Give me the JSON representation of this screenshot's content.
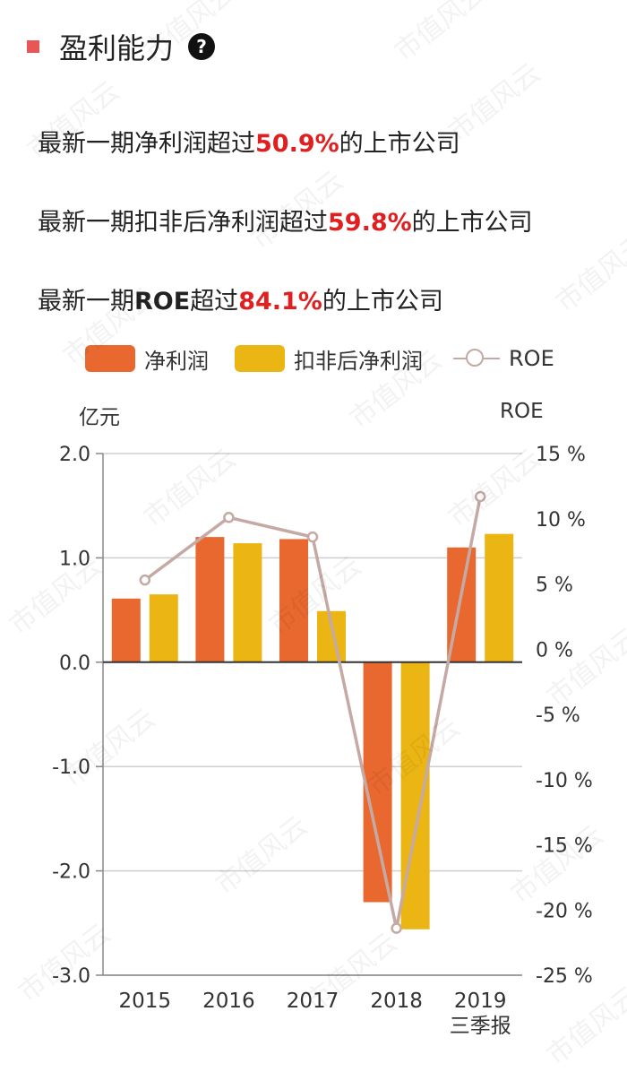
{
  "header": {
    "title": "盈利能力",
    "help_icon": "?"
  },
  "stats": [
    {
      "prefix": "最新一期净利润超过",
      "highlight": "",
      "value": "50.9%",
      "suffix": "的上市公司"
    },
    {
      "prefix": "最新一期扣非后净利润超过",
      "highlight": "",
      "value": "59.8%",
      "suffix": "的上市公司"
    },
    {
      "prefix": "最新一期",
      "highlight": "ROE",
      "value": "84.1%",
      "suffix": "的上市公司"
    }
  ],
  "legend": {
    "net_profit": "净利润",
    "net_profit_ex": "扣非后净利润",
    "roe": "ROE"
  },
  "axis_units": {
    "left": "亿元",
    "right": "ROE"
  },
  "watermark": "市值风云",
  "colors": {
    "net_profit": "#e8682f",
    "net_profit_ex": "#ebb513",
    "roe": "#c4a9a4",
    "accent_red": "#e02020"
  },
  "chart_data": {
    "type": "bar",
    "categories": [
      "2015",
      "2016",
      "2017",
      "2018",
      "2019"
    ],
    "category_sublabels": [
      "",
      "",
      "",
      "",
      "三季报"
    ],
    "series": [
      {
        "name": "净利润",
        "values": [
          0.61,
          1.2,
          1.18,
          -2.3,
          1.1
        ]
      },
      {
        "name": "扣非后净利润",
        "values": [
          0.65,
          1.14,
          0.49,
          -2.56,
          1.23
        ]
      },
      {
        "name": "ROE",
        "type": "line",
        "axis": "right",
        "values": [
          5.3,
          10.1,
          8.6,
          -21.4,
          11.7
        ]
      }
    ],
    "ylim": [
      -3.0,
      2.0
    ],
    "yticks": [
      2.0,
      1.0,
      0.0,
      -1.0,
      -2.0,
      -3.0
    ],
    "ytick_labels": [
      "2.0",
      "1.0",
      "0.0",
      "-1.0",
      "-2.0",
      "-3.0"
    ],
    "y2lim": [
      -25,
      15
    ],
    "y2ticks": [
      15,
      10,
      5,
      0,
      -5,
      -10,
      -15,
      -20,
      -25
    ],
    "y2tick_labels": [
      "15 %",
      "10 %",
      "5 %",
      "0 %",
      "-5 %",
      "-10 %",
      "-15 %",
      "-20 %",
      "-25 %"
    ],
    "ylabel": "亿元",
    "y2label": "ROE"
  }
}
